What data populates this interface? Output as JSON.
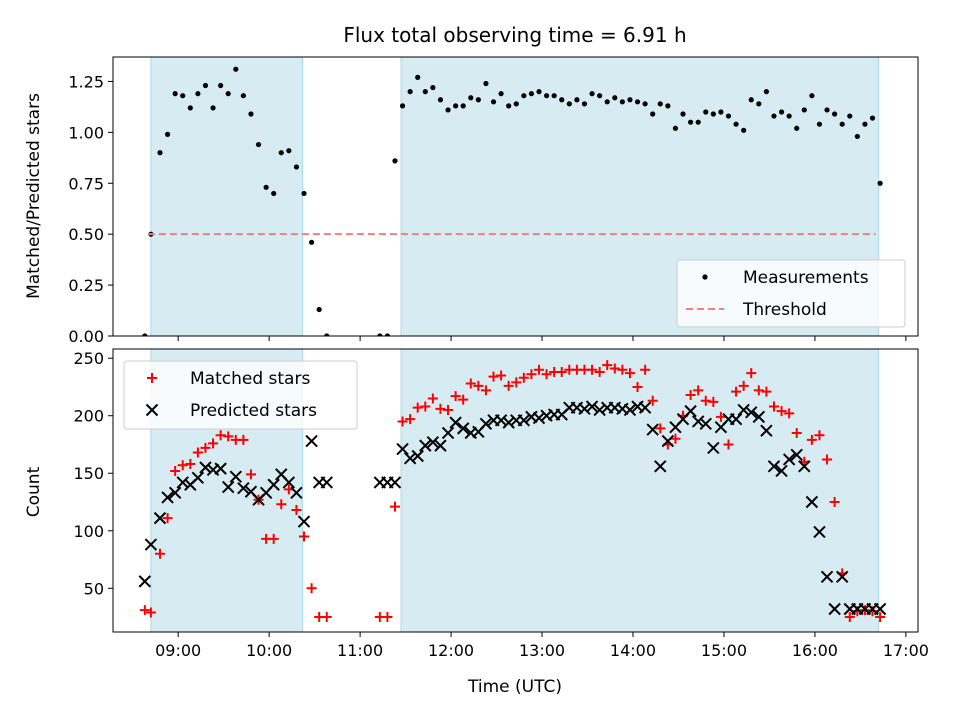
{
  "chart_data": [
    {
      "type": "scatter",
      "title": "Flux total observing time = 6.91 h",
      "xlabel": "",
      "ylabel": "Matched/Predicted stars",
      "ylim": [
        0,
        1.37
      ],
      "xlim": [
        "08:17",
        "17:08"
      ],
      "x_ticks": [
        "09:00",
        "10:00",
        "11:00",
        "12:00",
        "13:00",
        "14:00",
        "15:00",
        "16:00",
        "17:00"
      ],
      "y_ticks": [
        "0.00",
        "0.25",
        "0.50",
        "0.75",
        "1.00",
        "1.25"
      ],
      "y_tick_values": [
        0,
        0.25,
        0.5,
        0.75,
        1.0,
        1.25
      ],
      "shaded_intervals": [
        [
          "08:42",
          "10:22"
        ],
        [
          "11:27",
          "16:42"
        ]
      ],
      "legend_position": "lower-right",
      "series": [
        {
          "name": "Measurements",
          "marker": "dot",
          "color": "#000000",
          "x": [
            "08:38",
            "08:42",
            "08:48",
            "08:53",
            "08:58",
            "09:03",
            "09:08",
            "09:13",
            "09:18",
            "09:23",
            "09:28",
            "09:33",
            "09:38",
            "09:43",
            "09:48",
            "09:53",
            "09:58",
            "10:03",
            "10:08",
            "10:13",
            "10:18",
            "10:23",
            "10:28",
            "10:33",
            "10:38",
            "11:13",
            "11:18",
            "11:23",
            "11:28",
            "11:33",
            "11:38",
            "11:43",
            "11:48",
            "11:53",
            "11:58",
            "12:03",
            "12:08",
            "12:13",
            "12:18",
            "12:23",
            "12:28",
            "12:33",
            "12:38",
            "12:43",
            "12:48",
            "12:53",
            "12:58",
            "13:03",
            "13:08",
            "13:13",
            "13:18",
            "13:23",
            "13:28",
            "13:33",
            "13:38",
            "13:43",
            "13:48",
            "13:53",
            "13:58",
            "14:03",
            "14:08",
            "14:13",
            "14:18",
            "14:23",
            "14:28",
            "14:33",
            "14:38",
            "14:43",
            "14:48",
            "14:53",
            "14:58",
            "15:03",
            "15:08",
            "15:13",
            "15:18",
            "15:23",
            "15:28",
            "15:33",
            "15:38",
            "15:43",
            "15:48",
            "15:53",
            "15:58",
            "16:03",
            "16:08",
            "16:13",
            "16:18",
            "16:23",
            "16:28",
            "16:33",
            "16:38",
            "16:43"
          ],
          "y": [
            0.0,
            0.5,
            0.9,
            0.99,
            1.19,
            1.18,
            1.12,
            1.19,
            1.23,
            1.12,
            1.23,
            1.19,
            1.31,
            1.18,
            1.09,
            0.94,
            0.73,
            0.7,
            0.9,
            0.91,
            0.83,
            0.7,
            0.46,
            0.13,
            0.0,
            0.0,
            0.0,
            0.86,
            1.13,
            1.2,
            1.27,
            1.2,
            1.22,
            1.16,
            1.11,
            1.13,
            1.13,
            1.17,
            1.16,
            1.24,
            1.15,
            1.19,
            1.13,
            1.14,
            1.18,
            1.19,
            1.2,
            1.18,
            1.18,
            1.16,
            1.14,
            1.16,
            1.14,
            1.19,
            1.18,
            1.15,
            1.17,
            1.15,
            1.16,
            1.15,
            1.14,
            1.09,
            1.14,
            1.13,
            1.02,
            1.09,
            1.05,
            1.05,
            1.1,
            1.09,
            1.1,
            1.08,
            1.04,
            1.01,
            1.16,
            1.14,
            1.2,
            1.08,
            1.1,
            1.08,
            1.02,
            1.11,
            1.18,
            1.04,
            1.11,
            1.09,
            1.04,
            1.08,
            0.98,
            1.04,
            1.07,
            0.75
          ]
        },
        {
          "name": "Threshold",
          "marker": "dashed-line",
          "color": "#f08080",
          "x": [
            "08:40",
            "16:40"
          ],
          "y": [
            0.5,
            0.5
          ]
        }
      ]
    },
    {
      "type": "scatter",
      "title": "",
      "xlabel": "Time (UTC)",
      "ylabel": "Count",
      "ylim": [
        12,
        258
      ],
      "xlim": [
        "08:17",
        "17:08"
      ],
      "x_ticks": [
        "09:00",
        "10:00",
        "11:00",
        "12:00",
        "13:00",
        "14:00",
        "15:00",
        "16:00",
        "17:00"
      ],
      "y_ticks": [
        "50",
        "100",
        "150",
        "200",
        "250"
      ],
      "y_tick_values": [
        50,
        100,
        150,
        200,
        250
      ],
      "shaded_intervals": [
        [
          "08:42",
          "10:22"
        ],
        [
          "11:27",
          "16:42"
        ]
      ],
      "legend_position": "upper-left",
      "series": [
        {
          "name": "Matched stars",
          "marker": "plus",
          "color": "#ff0000",
          "x": [
            "08:38",
            "08:42",
            "08:48",
            "08:53",
            "08:58",
            "09:03",
            "09:08",
            "09:13",
            "09:18",
            "09:23",
            "09:28",
            "09:33",
            "09:38",
            "09:43",
            "09:48",
            "09:53",
            "09:58",
            "10:03",
            "10:08",
            "10:13",
            "10:18",
            "10:23",
            "10:28",
            "10:33",
            "10:38",
            "11:13",
            "11:18",
            "11:23",
            "11:28",
            "11:33",
            "11:38",
            "11:43",
            "11:48",
            "11:53",
            "11:58",
            "12:03",
            "12:08",
            "12:13",
            "12:18",
            "12:23",
            "12:28",
            "12:33",
            "12:38",
            "12:43",
            "12:48",
            "12:53",
            "12:58",
            "13:03",
            "13:08",
            "13:13",
            "13:18",
            "13:23",
            "13:28",
            "13:33",
            "13:38",
            "13:43",
            "13:48",
            "13:53",
            "13:58",
            "14:03",
            "14:08",
            "14:13",
            "14:18",
            "14:23",
            "14:28",
            "14:33",
            "14:38",
            "14:43",
            "14:48",
            "14:53",
            "14:58",
            "15:03",
            "15:08",
            "15:13",
            "15:18",
            "15:23",
            "15:28",
            "15:33",
            "15:38",
            "15:43",
            "15:48",
            "15:53",
            "15:58",
            "16:03",
            "16:08",
            "16:13",
            "16:18",
            "16:23",
            "16:28",
            "16:33",
            "16:38",
            "16:43"
          ],
          "y": [
            31,
            29,
            80,
            111,
            152,
            157,
            158,
            168,
            172,
            176,
            183,
            182,
            179,
            179,
            149,
            127,
            93,
            93,
            123,
            136,
            118,
            95,
            50,
            25,
            25,
            25,
            25,
            121,
            195,
            197,
            207,
            208,
            215,
            206,
            205,
            217,
            214,
            228,
            226,
            222,
            234,
            235,
            226,
            229,
            233,
            236,
            240,
            236,
            238,
            238,
            240,
            240,
            240,
            240,
            238,
            244,
            241,
            240,
            237,
            225,
            240,
            213,
            189,
            175,
            180,
            200,
            218,
            222,
            213,
            212,
            199,
            175,
            221,
            226,
            237,
            222,
            221,
            208,
            204,
            202,
            185,
            160,
            179,
            183,
            162,
            125,
            63,
            25,
            30,
            31,
            30,
            25
          ]
        },
        {
          "name": "Predicted stars",
          "marker": "x",
          "color": "#000000",
          "x": [
            "08:38",
            "08:42",
            "08:48",
            "08:53",
            "08:58",
            "09:03",
            "09:08",
            "09:13",
            "09:18",
            "09:23",
            "09:28",
            "09:33",
            "09:38",
            "09:43",
            "09:48",
            "09:53",
            "09:58",
            "10:03",
            "10:08",
            "10:13",
            "10:18",
            "10:23",
            "10:28",
            "10:33",
            "10:38",
            "11:13",
            "11:18",
            "11:23",
            "11:28",
            "11:33",
            "11:38",
            "11:43",
            "11:48",
            "11:53",
            "11:58",
            "12:03",
            "12:08",
            "12:13",
            "12:18",
            "12:23",
            "12:28",
            "12:33",
            "12:38",
            "12:43",
            "12:48",
            "12:53",
            "12:58",
            "13:03",
            "13:08",
            "13:13",
            "13:18",
            "13:23",
            "13:28",
            "13:33",
            "13:38",
            "13:43",
            "13:48",
            "13:53",
            "13:58",
            "14:03",
            "14:08",
            "14:13",
            "14:18",
            "14:23",
            "14:28",
            "14:33",
            "14:38",
            "14:43",
            "14:48",
            "14:53",
            "14:58",
            "15:03",
            "15:08",
            "15:13",
            "15:18",
            "15:23",
            "15:28",
            "15:33",
            "15:38",
            "15:43",
            "15:48",
            "15:53",
            "15:58",
            "16:03",
            "16:08",
            "16:13",
            "16:18",
            "16:23",
            "16:28",
            "16:33",
            "16:38",
            "16:43"
          ],
          "y": [
            56,
            88,
            111,
            129,
            133,
            142,
            140,
            146,
            155,
            153,
            154,
            138,
            147,
            137,
            134,
            127,
            133,
            140,
            149,
            142,
            133,
            108,
            178,
            142,
            142,
            142,
            142,
            142,
            171,
            163,
            165,
            174,
            177,
            174,
            185,
            194,
            189,
            185,
            186,
            193,
            196,
            196,
            194,
            196,
            196,
            199,
            198,
            200,
            201,
            201,
            207,
            207,
            206,
            208,
            205,
            207,
            207,
            206,
            205,
            208,
            207,
            188,
            156,
            178,
            190,
            197,
            204,
            195,
            193,
            172,
            190,
            197,
            197,
            205,
            203,
            199,
            187,
            156,
            152,
            162,
            166,
            156,
            125,
            99,
            60,
            32,
            60,
            32,
            32,
            32,
            32,
            32
          ]
        }
      ]
    }
  ]
}
